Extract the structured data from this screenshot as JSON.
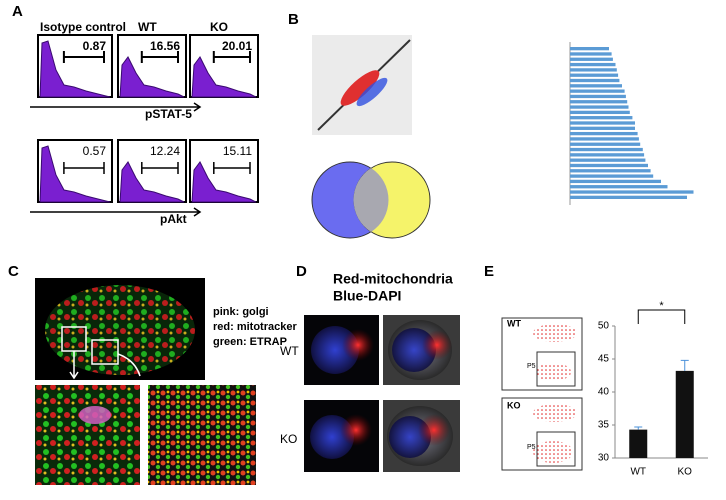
{
  "panels": {
    "a": {
      "label": "A",
      "columns": [
        "Isotype control",
        "WT",
        "KO"
      ],
      "top_values": [
        "0.87",
        "16.56",
        "20.01"
      ],
      "top_axis": "pSTAT-5",
      "bottom_values": [
        "0.57",
        "12.24",
        "15.11"
      ],
      "bottom_axis": "pAkt"
    },
    "b": {
      "label": "B"
    },
    "c": {
      "label": "C",
      "legend": [
        "pink: golgi",
        "red: mitotracker",
        "green: ETRAP"
      ]
    },
    "d": {
      "label": "D",
      "title": [
        "Red-mitochondria",
        "Blue-DAPI"
      ],
      "rows": [
        "WT",
        "KO"
      ]
    },
    "e": {
      "label": "E",
      "flow_rows": [
        "WT",
        "KO"
      ],
      "gate": "P5"
    }
  },
  "chart_data": [
    {
      "type": "bar",
      "categories": [
        "WT",
        "KO"
      ],
      "values": [
        34.3,
        43.2
      ],
      "errors": [
        0.4,
        1.6
      ],
      "color": "#111111",
      "error_color": "#4a90d9",
      "ylim": [
        30,
        50
      ],
      "yticks": [
        30,
        35,
        40,
        45,
        50
      ],
      "annotation": "*"
    },
    {
      "type": "hbar",
      "color": "#5b9bd5",
      "xlim": [
        0,
        1
      ],
      "values": [
        0.3,
        0.32,
        0.33,
        0.35,
        0.36,
        0.37,
        0.38,
        0.4,
        0.42,
        0.43,
        0.44,
        0.45,
        0.46,
        0.48,
        0.5,
        0.5,
        0.52,
        0.53,
        0.54,
        0.56,
        0.57,
        0.58,
        0.6,
        0.62,
        0.64,
        0.7,
        0.75,
        0.95,
        0.9
      ]
    }
  ]
}
